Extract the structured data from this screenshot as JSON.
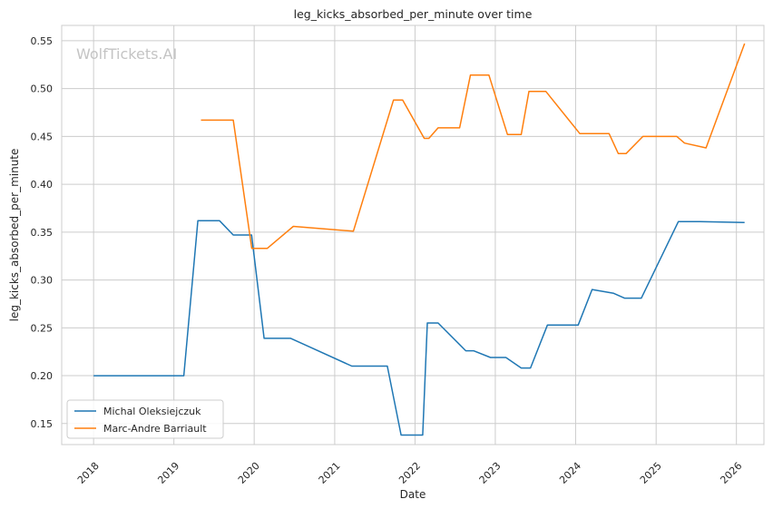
{
  "watermark": "WolfTickets.AI",
  "chart_data": {
    "type": "line",
    "title": "leg_kicks_absorbed_per_minute over time",
    "xlabel": "Date",
    "ylabel": "leg_kicks_absorbed_per_minute",
    "x_ticks": [
      "2018",
      "2019",
      "2020",
      "2021",
      "2022",
      "2023",
      "2024",
      "2025",
      "2026"
    ],
    "y_ticks": [
      "0.15",
      "0.20",
      "0.25",
      "0.30",
      "0.35",
      "0.40",
      "0.45",
      "0.50",
      "0.55"
    ],
    "xlim": [
      "2017-08-09",
      "2026-05-06"
    ],
    "ylim": [
      0.128,
      0.566
    ],
    "grid": true,
    "legend_position": "lower-left",
    "series": [
      {
        "name": "Michal Oleksiejczuk",
        "color": "#1f77b4",
        "points": [
          [
            "2018-01-01",
            0.2
          ],
          [
            "2019-02-15",
            0.2
          ],
          [
            "2019-04-20",
            0.362
          ],
          [
            "2019-07-27",
            0.362
          ],
          [
            "2019-09-28",
            0.347
          ],
          [
            "2019-12-20",
            0.347
          ],
          [
            "2020-02-15",
            0.239
          ],
          [
            "2020-06-15",
            0.239
          ],
          [
            "2021-03-20",
            0.21
          ],
          [
            "2021-08-28",
            0.21
          ],
          [
            "2021-10-30",
            0.138
          ],
          [
            "2022-02-05",
            0.138
          ],
          [
            "2022-02-26",
            0.255
          ],
          [
            "2022-04-16",
            0.255
          ],
          [
            "2022-08-20",
            0.226
          ],
          [
            "2022-09-24",
            0.226
          ],
          [
            "2022-12-10",
            0.219
          ],
          [
            "2023-02-18",
            0.219
          ],
          [
            "2023-04-29",
            0.208
          ],
          [
            "2023-06-10",
            0.208
          ],
          [
            "2023-08-26",
            0.253
          ],
          [
            "2024-01-13",
            0.253
          ],
          [
            "2024-03-16",
            0.29
          ],
          [
            "2024-06-22",
            0.286
          ],
          [
            "2024-08-10",
            0.281
          ],
          [
            "2024-10-26",
            0.281
          ],
          [
            "2025-04-12",
            0.361
          ],
          [
            "2025-07-19",
            0.361
          ],
          [
            "2026-02-07",
            0.36
          ]
        ]
      },
      {
        "name": "Marc-Andre Barriault",
        "color": "#ff7f0e",
        "points": [
          [
            "2019-05-04",
            0.467
          ],
          [
            "2019-09-28",
            0.467
          ],
          [
            "2019-12-21",
            0.333
          ],
          [
            "2020-02-29",
            0.333
          ],
          [
            "2020-06-27",
            0.356
          ],
          [
            "2021-03-27",
            0.351
          ],
          [
            "2021-09-25",
            0.488
          ],
          [
            "2021-11-06",
            0.488
          ],
          [
            "2022-02-12",
            0.448
          ],
          [
            "2022-03-05",
            0.448
          ],
          [
            "2022-04-16",
            0.459
          ],
          [
            "2022-07-23",
            0.459
          ],
          [
            "2022-09-10",
            0.514
          ],
          [
            "2022-12-03",
            0.514
          ],
          [
            "2023-02-25",
            0.452
          ],
          [
            "2023-04-29",
            0.452
          ],
          [
            "2023-06-03",
            0.497
          ],
          [
            "2023-08-19",
            0.497
          ],
          [
            "2024-01-20",
            0.453
          ],
          [
            "2024-06-01",
            0.453
          ],
          [
            "2024-07-13",
            0.432
          ],
          [
            "2024-08-17",
            0.432
          ],
          [
            "2024-11-02",
            0.45
          ],
          [
            "2025-04-05",
            0.45
          ],
          [
            "2025-05-10",
            0.443
          ],
          [
            "2025-08-16",
            0.438
          ],
          [
            "2026-02-07",
            0.547
          ]
        ]
      }
    ]
  }
}
